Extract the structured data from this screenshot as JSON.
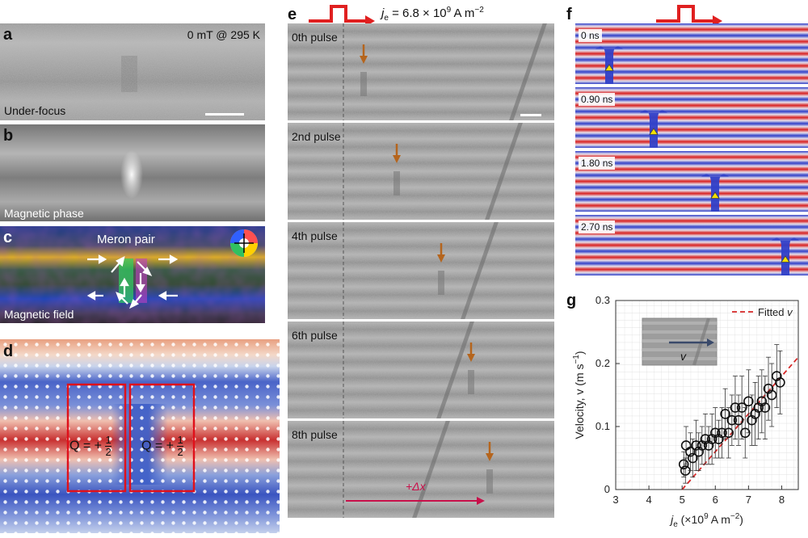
{
  "panels": {
    "a": {
      "label": "a",
      "condition": "0 mT @ 295 K",
      "caption": "Under-focus"
    },
    "b": {
      "label": "b",
      "caption": "Magnetic phase"
    },
    "c": {
      "label": "c",
      "title": "Meron pair",
      "caption": "Magnetic field"
    },
    "d": {
      "label": "d",
      "q_left": "Q = +",
      "q_right": "Q = +",
      "frac_num": "1",
      "frac_den": "2"
    },
    "e": {
      "label": "e",
      "current": "6.8 × 10",
      "current_exp": "9",
      "current_unit": " A m",
      "current_unit_exp": "−2",
      "je_main": "j",
      "je_sub": "e",
      "frames": [
        {
          "text": "0th pulse",
          "arrow_x": 450
        },
        {
          "text": "2nd pulse",
          "arrow_x": 491
        },
        {
          "text": "4th pulse",
          "arrow_x": 546
        },
        {
          "text": "6th pulse",
          "arrow_x": 583
        },
        {
          "text": "8th pulse",
          "arrow_x": 606
        }
      ],
      "displacement": "+Δx"
    },
    "f": {
      "label": "f",
      "times": [
        "0 ns",
        "0.90 ns",
        "1.80 ns",
        "2.70 ns"
      ]
    },
    "g": {
      "label": "g",
      "legend": "Fitted v",
      "inset_label": "v",
      "ylabel": "Velocity, v (m s",
      "ylabel_exp": "−1",
      "ylabel_end": ")",
      "xlabel_main": "j",
      "xlabel_sub": "e",
      "xlabel_rest": " (×10",
      "xlabel_exp": "9",
      "xlabel_end": " A m",
      "xlabel_exp2": "−2",
      "xlabel_close": ")"
    }
  },
  "colors": {
    "pulse_red": "#e02020",
    "arrow_brown": "#b5651d",
    "fit_red": "#d62828",
    "marker_yellow": "#f3e000"
  },
  "chart_data": {
    "type": "scatter",
    "xlim": [
      3,
      8.5
    ],
    "ylim": [
      0,
      0.3
    ],
    "xticks": [
      "3",
      "4",
      "5",
      "6",
      "7",
      "8"
    ],
    "yticks": [
      "0",
      "0.1",
      "0.2",
      "0.3"
    ],
    "grid": true,
    "legend_position": "top-right",
    "points": [
      {
        "x": 5.05,
        "y": 0.04,
        "err": 0.02
      },
      {
        "x": 5.1,
        "y": 0.03,
        "err": 0.02
      },
      {
        "x": 5.12,
        "y": 0.07,
        "err": 0.03
      },
      {
        "x": 5.25,
        "y": 0.06,
        "err": 0.03
      },
      {
        "x": 5.32,
        "y": 0.05,
        "err": 0.03
      },
      {
        "x": 5.42,
        "y": 0.07,
        "err": 0.04
      },
      {
        "x": 5.5,
        "y": 0.06,
        "err": 0.03
      },
      {
        "x": 5.6,
        "y": 0.07,
        "err": 0.03
      },
      {
        "x": 5.7,
        "y": 0.08,
        "err": 0.04
      },
      {
        "x": 5.8,
        "y": 0.07,
        "err": 0.03
      },
      {
        "x": 5.9,
        "y": 0.08,
        "err": 0.04
      },
      {
        "x": 6.0,
        "y": 0.09,
        "err": 0.04
      },
      {
        "x": 6.1,
        "y": 0.08,
        "err": 0.03
      },
      {
        "x": 6.2,
        "y": 0.09,
        "err": 0.04
      },
      {
        "x": 6.3,
        "y": 0.12,
        "err": 0.04
      },
      {
        "x": 6.4,
        "y": 0.09,
        "err": 0.04
      },
      {
        "x": 6.5,
        "y": 0.11,
        "err": 0.04
      },
      {
        "x": 6.6,
        "y": 0.13,
        "err": 0.05
      },
      {
        "x": 6.7,
        "y": 0.11,
        "err": 0.04
      },
      {
        "x": 6.8,
        "y": 0.13,
        "err": 0.05
      },
      {
        "x": 6.9,
        "y": 0.09,
        "err": 0.04
      },
      {
        "x": 7.0,
        "y": 0.14,
        "err": 0.05
      },
      {
        "x": 7.1,
        "y": 0.11,
        "err": 0.04
      },
      {
        "x": 7.2,
        "y": 0.12,
        "err": 0.05
      },
      {
        "x": 7.3,
        "y": 0.13,
        "err": 0.05
      },
      {
        "x": 7.4,
        "y": 0.14,
        "err": 0.05
      },
      {
        "x": 7.5,
        "y": 0.13,
        "err": 0.05
      },
      {
        "x": 7.6,
        "y": 0.16,
        "err": 0.05
      },
      {
        "x": 7.7,
        "y": 0.15,
        "err": 0.05
      },
      {
        "x": 7.85,
        "y": 0.18,
        "err": 0.05
      },
      {
        "x": 7.95,
        "y": 0.17,
        "err": 0.05
      }
    ],
    "fit": [
      [
        5.0,
        0.0
      ],
      [
        8.5,
        0.21
      ]
    ]
  }
}
